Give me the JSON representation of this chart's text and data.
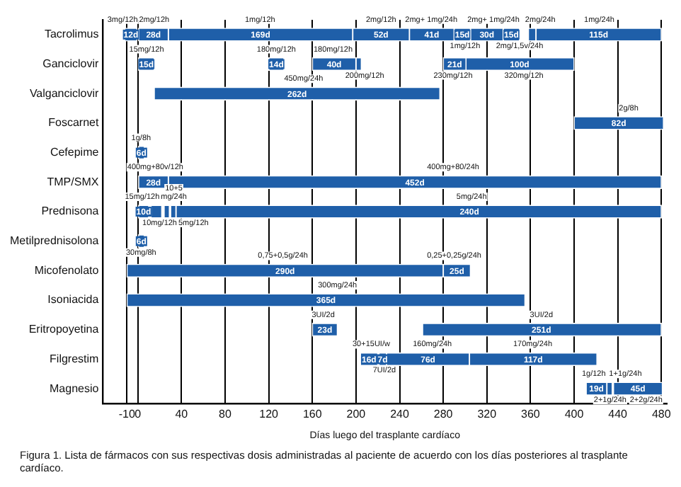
{
  "chart_data": {
    "type": "bar",
    "orientation": "horizontal",
    "xlabel": "Días luego del trasplante cardíaco",
    "categories": [
      "Tacrolimus",
      "Ganciclovir",
      "Valganciclovir",
      "Foscarnet",
      "Cefepime",
      "TMP/SMX",
      "Prednisona",
      "Metilprednisolona",
      "Micofenolato",
      "Isoniacida",
      "Eritropoyetina",
      "Filgrestim",
      "Magnesio"
    ],
    "series": [
      {
        "color": "#1f5fa9",
        "base": [
          -12,
          0,
          15,
          400,
          0,
          0,
          0,
          0,
          -10,
          -10,
          160,
          204,
          411
        ],
        "values": [
          12,
          15,
          262,
          82,
          6,
          28,
          10,
          6,
          290,
          365,
          23,
          16,
          19
        ],
        "value_labels": [
          "12d",
          "15d",
          "262d",
          "82d",
          "6d",
          "28d",
          "10d",
          "6d",
          "290d",
          "365d",
          "23d",
          "16d",
          "19d"
        ]
      },
      {
        "color": "#1f5fa9",
        "base": [
          0,
          120,
          null,
          null,
          null,
          28,
          12,
          null,
          280,
          null,
          261,
          221,
          430
        ],
        "values": [
          28,
          14,
          null,
          null,
          null,
          452,
          10,
          null,
          25,
          null,
          219,
          7,
          5
        ],
        "value_labels": [
          "28d",
          "14d",
          null,
          null,
          null,
          "452d",
          null,
          null,
          "25d",
          null,
          null,
          "7d",
          null
        ]
      },
      {
        "color": "#1f5fa9",
        "base": [
          28,
          160,
          null,
          null,
          null,
          null,
          24,
          null,
          null,
          null,
          null,
          228,
          436
        ],
        "values": [
          169,
          40,
          null,
          null,
          null,
          null,
          5,
          null,
          null,
          null,
          null,
          76,
          45
        ],
        "value_labels": [
          "169d",
          "40d",
          null,
          null,
          null,
          null,
          null,
          null,
          null,
          null,
          null,
          "76d",
          "45d"
        ]
      },
      {
        "color": "#1f5fa9",
        "base": [
          197,
          200,
          null,
          null,
          null,
          null,
          30,
          null,
          null,
          null,
          null,
          304,
          null
        ],
        "values": [
          52,
          5,
          null,
          null,
          null,
          null,
          5,
          null,
          null,
          null,
          null,
          117,
          null
        ],
        "value_labels": [
          "52d",
          null,
          null,
          null,
          null,
          null,
          null,
          null,
          null,
          null,
          null,
          "117d",
          null
        ]
      },
      {
        "color": "#1f5fa9",
        "base": [
          249,
          280,
          null,
          null,
          null,
          null,
          35,
          null,
          null,
          null,
          null,
          null,
          null
        ],
        "values": [
          41,
          21,
          null,
          null,
          null,
          null,
          445,
          null,
          null,
          null,
          null,
          null,
          null
        ],
        "value_labels": [
          "41d",
          "21d",
          null,
          null,
          null,
          null,
          null,
          null,
          null,
          null,
          null,
          null,
          null
        ]
      },
      {
        "color": "#1f5fa9",
        "base": [
          290,
          300,
          null,
          null,
          null,
          null,
          null,
          null,
          null,
          null,
          null,
          null,
          null
        ],
        "values": [
          15,
          100,
          null,
          null,
          null,
          null,
          null,
          null,
          null,
          null,
          null,
          null,
          null
        ],
        "value_labels": [
          "15d",
          "100d",
          null,
          null,
          null,
          null,
          null,
          null,
          null,
          null,
          null,
          null,
          null
        ]
      },
      {
        "color": "#1f5fa9",
        "base": [
          305,
          null,
          null,
          null,
          null,
          null,
          null,
          null,
          null,
          null,
          null,
          null,
          null
        ],
        "values": [
          30,
          null,
          null,
          null,
          null,
          null,
          null,
          null,
          null,
          null,
          null,
          null,
          null
        ],
        "value_labels": [
          "30d",
          null,
          null,
          null,
          null,
          null,
          null,
          null,
          null,
          null,
          null,
          null,
          null
        ]
      },
      {
        "color": "#1f5fa9",
        "base": [
          335,
          null,
          null,
          null,
          null,
          null,
          null,
          null,
          null,
          null,
          null,
          null,
          null
        ],
        "values": [
          15,
          null,
          null,
          null,
          null,
          null,
          null,
          null,
          null,
          null,
          null,
          null,
          null
        ],
        "value_labels": [
          "15d",
          null,
          null,
          null,
          null,
          null,
          null,
          null,
          null,
          null,
          null,
          null,
          null
        ]
      },
      {
        "color": "#1f5fa9",
        "base": [
          358,
          null,
          null,
          null,
          null,
          null,
          null,
          null,
          null,
          null,
          null,
          null,
          null
        ],
        "values": [
          7,
          null,
          null,
          null,
          null,
          null,
          null,
          null,
          null,
          null,
          null,
          null,
          null
        ],
        "value_labels": [
          null,
          null,
          null,
          null,
          null,
          null,
          null,
          null,
          null,
          null,
          null,
          null,
          null
        ]
      },
      {
        "color": "#1f5fa9",
        "base": [
          365,
          null,
          null,
          null,
          null,
          null,
          null,
          null,
          null,
          null,
          null,
          null,
          null
        ],
        "values": [
          115,
          null,
          null,
          null,
          null,
          null,
          null,
          null,
          null,
          null,
          null,
          null,
          null
        ],
        "value_labels": [
          "115d",
          null,
          null,
          null,
          null,
          null,
          null,
          null,
          null,
          null,
          null,
          null,
          null
        ]
      }
    ],
    "xlim": [
      -32,
      485
    ],
    "xticks": [
      -10,
      0,
      40,
      80,
      120,
      160,
      200,
      240,
      280,
      320,
      360,
      400,
      440,
      480
    ],
    "grid": "x",
    "legend": false,
    "annotations": [
      {
        "text": "3mg/12h",
        "x": -14,
        "y": "Tacrolimus"
      },
      {
        "text": "2mg/12h",
        "x": 15,
        "y": "Tacrolimus"
      },
      {
        "text": "1mg/12h",
        "x": 112,
        "y": "Tacrolimus"
      },
      {
        "text": "2mg/12h",
        "x": 223,
        "y": "Tacrolimus"
      },
      {
        "text": "2mg+ 1mg/24h",
        "x": 269,
        "y": "Tacrolimus"
      },
      {
        "text": "1mg/12h",
        "x": 300,
        "y": "Tacrolimus"
      },
      {
        "text": "2mg+ 1mg/24h",
        "x": 326,
        "y": "Tacrolimus"
      },
      {
        "text": "2mg/1,5v/24h",
        "x": 350,
        "y": "Tacrolimus"
      },
      {
        "text": "2mg/24h",
        "x": 369,
        "y": "Tacrolimus"
      },
      {
        "text": "1mg/24h",
        "x": 423,
        "y": "Tacrolimus"
      },
      {
        "text": "15mg/12h",
        "x": 8,
        "y": "Ganciclovir"
      },
      {
        "text": "180mg/12h",
        "x": 127,
        "y": "Ganciclovir"
      },
      {
        "text": "180mg/12h",
        "x": 179,
        "y": "Ganciclovir"
      },
      {
        "text": "200mg/12h",
        "x": 208,
        "y": "Ganciclovir"
      },
      {
        "text": "230mg/12h",
        "x": 289,
        "y": "Ganciclovir"
      },
      {
        "text": "320mg/12h",
        "x": 354,
        "y": "Ganciclovir"
      },
      {
        "text": "450mg/24h",
        "x": 152,
        "y": "Valganciclovir"
      },
      {
        "text": "2g/8h",
        "x": 450,
        "y": "Foscarnet"
      },
      {
        "text": "1g/8h",
        "x": 3,
        "y": "Cefepime"
      },
      {
        "text": "400mg+80v/12h",
        "x": 16,
        "y": "TMP/SMX"
      },
      {
        "text": "400mg+80/24h",
        "x": 289,
        "y": "TMP/SMX"
      },
      {
        "text": "240d",
        "x": 304,
        "y": "Prednisona"
      },
      {
        "text": "15mg/12h",
        "x": 4,
        "y": "Prednisona"
      },
      {
        "text": "10mg/12h",
        "x": 20,
        "y": "Prednisona"
      },
      {
        "text": "10+5 mg/24h",
        "x": 33,
        "y": "Prednisona"
      },
      {
        "text": "5mg/12h",
        "x": 51,
        "y": "Prednisona"
      },
      {
        "text": "5mg/24h",
        "x": 306,
        "y": "Prednisona"
      },
      {
        "text": "30mg/8h",
        "x": 3,
        "y": "Metilprednisolona"
      },
      {
        "text": "0,75+0,5g/24h",
        "x": 133,
        "y": "Micofenolato"
      },
      {
        "text": "0,25+0,25g/24h",
        "x": 290,
        "y": "Micofenolato"
      },
      {
        "text": "300mg/24h",
        "x": 183,
        "y": "Isoniacida"
      },
      {
        "text": "3UI/2d",
        "x": 170,
        "y": "Eritropoyetina"
      },
      {
        "text": "251d",
        "x": 370,
        "y": "Eritropoyetina"
      },
      {
        "text": "3UI/2d",
        "x": 370,
        "y": "Eritropoyetina"
      },
      {
        "text": "30+15UI/w",
        "x": 214,
        "y": "Filgrestim"
      },
      {
        "text": "7UI/2d",
        "x": 226,
        "y": "Filgrestim"
      },
      {
        "text": "160mg/24h",
        "x": 270,
        "y": "Filgrestim"
      },
      {
        "text": "170mg/24h",
        "x": 362,
        "y": "Filgrestim"
      },
      {
        "text": "1g/12h",
        "x": 418,
        "y": "Magnesio"
      },
      {
        "text": "1+1g/24h",
        "x": 447,
        "y": "Magnesio"
      },
      {
        "text": "2+1g/24h",
        "x": 433,
        "y": "Magnesio"
      },
      {
        "text": "2+2g/24h",
        "x": 466,
        "y": "Magnesio"
      },
      "Figura 1. Lista de fármacos con sus respectivas dosis administradas al paciente de acuerdo con los días posteriores al trasplante cardíaco."
    ]
  }
}
